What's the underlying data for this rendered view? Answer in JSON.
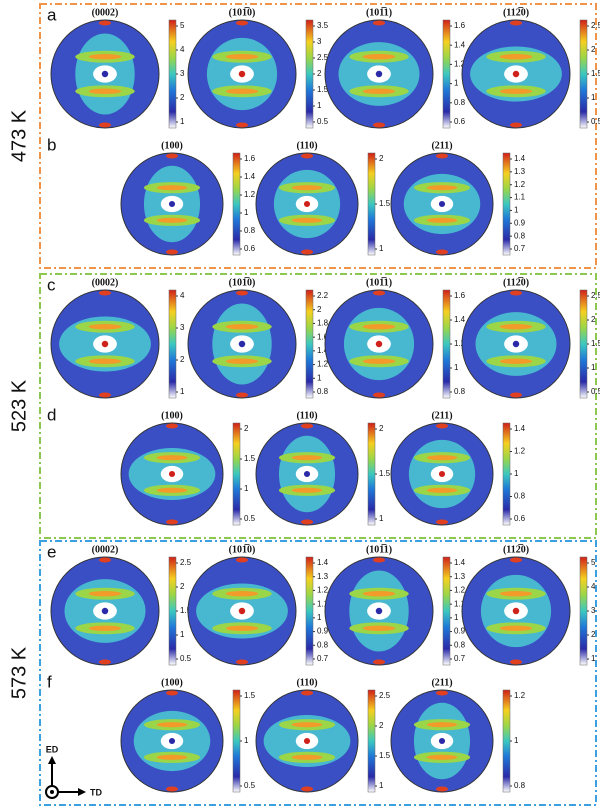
{
  "rows": [
    {
      "temperature": "473 K",
      "panels": [
        {
          "label": "a",
          "figures": [
            {
              "title": "(0002)",
              "ticks": [
                1,
                2,
                3,
                4,
                5
              ]
            },
            {
              "title": "(101̅0)",
              "ticks": [
                0.5,
                1,
                1.5,
                2,
                2.5,
                3,
                3.5
              ]
            },
            {
              "title": "(101̅1)",
              "ticks": [
                0.6,
                0.8,
                1,
                1.2,
                1.4,
                1.6
              ]
            },
            {
              "title": "(112̅0)",
              "ticks": [
                0.5,
                1,
                1.5,
                2,
                2.5
              ]
            }
          ]
        },
        {
          "label": "b",
          "figures": [
            {
              "title": "(100)",
              "ticks": [
                0.6,
                0.8,
                1,
                1.2,
                1.4,
                1.6
              ]
            },
            {
              "title": "(110)",
              "ticks": [
                1,
                1.5,
                2
              ]
            },
            {
              "title": "(211)",
              "ticks": [
                0.7,
                0.8,
                0.9,
                1,
                1.1,
                1.2,
                1.3,
                1.4
              ]
            }
          ]
        }
      ]
    },
    {
      "temperature": "523 K",
      "panels": [
        {
          "label": "c",
          "figures": [
            {
              "title": "(0002)",
              "ticks": [
                1,
                2,
                3,
                4
              ]
            },
            {
              "title": "(101̅0)",
              "ticks": [
                0.8,
                1,
                1.2,
                1.4,
                1.6,
                1.8,
                2,
                2.2
              ]
            },
            {
              "title": "(101̅1)",
              "ticks": [
                0.8,
                1,
                1.2,
                1.4,
                1.6
              ]
            },
            {
              "title": "(112̅0)",
              "ticks": [
                0.5,
                1,
                1.5,
                2,
                2.5
              ]
            }
          ]
        },
        {
          "label": "d",
          "figures": [
            {
              "title": "(100)",
              "ticks": [
                0.5,
                1,
                1.5,
                2
              ]
            },
            {
              "title": "(110)",
              "ticks": [
                1,
                1.5,
                2
              ]
            },
            {
              "title": "(211)",
              "ticks": [
                0.6,
                0.8,
                1,
                1.2,
                1.4
              ]
            }
          ]
        }
      ]
    },
    {
      "temperature": "573 K",
      "panels": [
        {
          "label": "e",
          "figures": [
            {
              "title": "(0002)",
              "ticks": [
                0.5,
                1,
                1.5,
                2,
                2.5
              ]
            },
            {
              "title": "(101̅0)",
              "ticks": [
                0.7,
                0.8,
                0.9,
                1,
                1.1,
                1.2,
                1.3,
                1.4
              ]
            },
            {
              "title": "(101̅1)",
              "ticks": [
                0.7,
                0.8,
                0.9,
                1,
                1.1,
                1.2,
                1.3,
                1.4
              ]
            },
            {
              "title": "(112̅0)",
              "ticks": [
                1,
                2,
                3,
                4,
                5
              ]
            }
          ]
        },
        {
          "label": "f",
          "figures": [
            {
              "title": "(100)",
              "ticks": [
                0.5,
                1,
                1.5
              ]
            },
            {
              "title": "(110)",
              "ticks": [
                1,
                1.5,
                2,
                2.5
              ]
            },
            {
              "title": "(211)",
              "ticks": [
                0.8,
                1,
                1.2
              ]
            }
          ]
        }
      ]
    }
  ],
  "axes": {
    "vertical": "ED",
    "horizontal": "TD"
  }
}
